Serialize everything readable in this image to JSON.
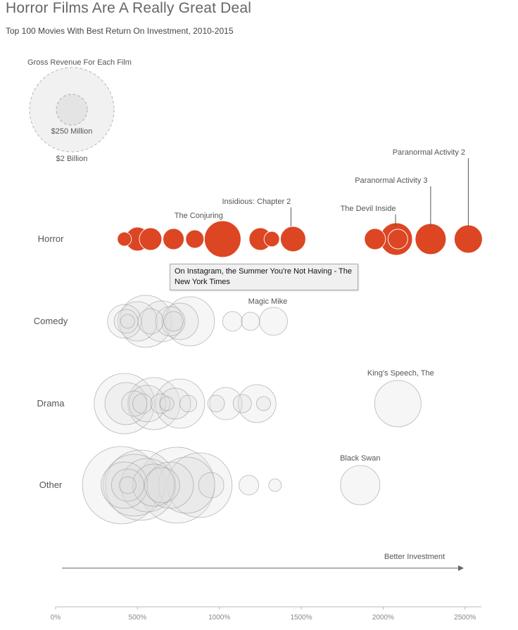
{
  "title": "Horror Films Are A Really Great Deal",
  "subtitle": "Top 100 Movies With Best Return On Investment, 2010-2015",
  "size_legend": {
    "heading": "Gross Revenue For Each Film",
    "small_label": "$250 Million",
    "large_label": "$2 Billion"
  },
  "tooltip": "On Instagram, the Summer You're Not Having - The New York Times",
  "arrow_label": "Better Investment",
  "colors": {
    "highlight": "#dc4623",
    "highlight_stroke": "#c23a1a",
    "muted_fill": "#e0e0e0",
    "muted_stroke": "#9a9a9a"
  },
  "chart_data": {
    "type": "scatter",
    "xlabel": "",
    "ylabel": "",
    "xlim": [
      0,
      2600
    ],
    "x_ticks": [
      0,
      500,
      1000,
      1500,
      2000,
      2500
    ],
    "x_tick_labels": [
      "0%",
      "500%",
      "1000%",
      "1500%",
      "2000%",
      "2500%"
    ],
    "categories": [
      "Horror",
      "Comedy",
      "Drama",
      "Other"
    ],
    "highlight_category": "Horror",
    "annotations": [
      {
        "label": "The Conjuring",
        "category": "Horror",
        "x": 1020
      },
      {
        "label": "Insidious: Chapter 2",
        "category": "Horror",
        "x": 1450
      },
      {
        "label": "The Devil Inside",
        "category": "Horror",
        "x": 2080
      },
      {
        "label": "Paranormal Activity 3",
        "category": "Horror",
        "x": 2290
      },
      {
        "label": "Paranormal Activity 2",
        "category": "Horror",
        "x": 2520
      },
      {
        "label": "Magic Mike",
        "category": "Comedy",
        "x": 1330
      },
      {
        "label": "King's Speech, The",
        "category": "Drama",
        "x": 2090
      },
      {
        "label": "Black Swan",
        "category": "Other",
        "x": 1860
      }
    ],
    "series": [
      {
        "category": "Horror",
        "points": [
          {
            "x": 420,
            "r": 10
          },
          {
            "x": 500,
            "r": 17
          },
          {
            "x": 580,
            "r": 16
          },
          {
            "x": 720,
            "r": 15
          },
          {
            "x": 850,
            "r": 13
          },
          {
            "x": 1020,
            "r": 26
          },
          {
            "x": 1250,
            "r": 16
          },
          {
            "x": 1320,
            "r": 11
          },
          {
            "x": 1450,
            "r": 18
          },
          {
            "x": 1950,
            "r": 15
          },
          {
            "x": 2080,
            "r": 23
          },
          {
            "x": 2090,
            "r": 14
          },
          {
            "x": 2290,
            "r": 22
          },
          {
            "x": 2520,
            "r": 20
          }
        ]
      },
      {
        "category": "Comedy",
        "points": [
          {
            "x": 420,
            "r": 24
          },
          {
            "x": 430,
            "r": 17
          },
          {
            "x": 440,
            "r": 10
          },
          {
            "x": 500,
            "r": 28
          },
          {
            "x": 550,
            "r": 37
          },
          {
            "x": 580,
            "r": 18
          },
          {
            "x": 650,
            "r": 29
          },
          {
            "x": 700,
            "r": 21
          },
          {
            "x": 720,
            "r": 14
          },
          {
            "x": 760,
            "r": 26
          },
          {
            "x": 820,
            "r": 35
          },
          {
            "x": 1080,
            "r": 14
          },
          {
            "x": 1190,
            "r": 13
          },
          {
            "x": 1330,
            "r": 20
          }
        ]
      },
      {
        "category": "Drama",
        "points": [
          {
            "x": 420,
            "r": 43
          },
          {
            "x": 430,
            "r": 30
          },
          {
            "x": 480,
            "r": 18
          },
          {
            "x": 530,
            "r": 14
          },
          {
            "x": 560,
            "r": 26
          },
          {
            "x": 600,
            "r": 37
          },
          {
            "x": 640,
            "r": 14
          },
          {
            "x": 680,
            "r": 10
          },
          {
            "x": 730,
            "r": 22
          },
          {
            "x": 760,
            "r": 35
          },
          {
            "x": 810,
            "r": 12
          },
          {
            "x": 980,
            "r": 12
          },
          {
            "x": 1040,
            "r": 23
          },
          {
            "x": 1140,
            "r": 13
          },
          {
            "x": 1230,
            "r": 27
          },
          {
            "x": 1270,
            "r": 10
          },
          {
            "x": 2090,
            "r": 33
          }
        ]
      },
      {
        "category": "Other",
        "points": [
          {
            "x": 400,
            "r": 55
          },
          {
            "x": 420,
            "r": 33
          },
          {
            "x": 440,
            "r": 23
          },
          {
            "x": 440,
            "r": 12
          },
          {
            "x": 480,
            "r": 44
          },
          {
            "x": 520,
            "r": 50
          },
          {
            "x": 560,
            "r": 38
          },
          {
            "x": 600,
            "r": 30
          },
          {
            "x": 650,
            "r": 25
          },
          {
            "x": 700,
            "r": 33
          },
          {
            "x": 740,
            "r": 54
          },
          {
            "x": 800,
            "r": 40
          },
          {
            "x": 880,
            "r": 46
          },
          {
            "x": 950,
            "r": 18
          },
          {
            "x": 1180,
            "r": 14
          },
          {
            "x": 1340,
            "r": 9
          },
          {
            "x": 1860,
            "r": 28
          }
        ]
      }
    ]
  }
}
